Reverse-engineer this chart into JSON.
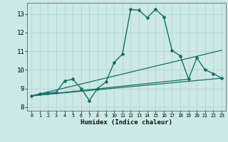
{
  "xlabel": "Humidex (Indice chaleur)",
  "xlim": [
    -0.5,
    23.5
  ],
  "ylim": [
    7.8,
    13.6
  ],
  "xticks": [
    0,
    1,
    2,
    3,
    4,
    5,
    6,
    7,
    8,
    9,
    10,
    11,
    12,
    13,
    14,
    15,
    16,
    17,
    18,
    19,
    20,
    21,
    22,
    23
  ],
  "yticks": [
    8,
    9,
    10,
    11,
    12,
    13
  ],
  "background_color": "#cce9e5",
  "grid_color": "#aad4cf",
  "line_color": "#1a6e64",
  "main_line": {
    "x": [
      0,
      1,
      2,
      3,
      4,
      5,
      6,
      7,
      8,
      9,
      10,
      11,
      12,
      13,
      14,
      15,
      16,
      17,
      18,
      19,
      20,
      21,
      22,
      23
    ],
    "y": [
      8.6,
      8.7,
      8.75,
      8.8,
      9.4,
      9.5,
      9.0,
      8.35,
      9.0,
      9.35,
      10.4,
      10.85,
      13.25,
      13.2,
      12.8,
      13.25,
      12.85,
      11.05,
      10.75,
      9.5,
      10.65,
      10.0,
      9.8,
      9.55
    ]
  },
  "trend_lines": [
    {
      "x": [
        0,
        23
      ],
      "y": [
        8.6,
        9.55
      ]
    },
    {
      "x": [
        0,
        19
      ],
      "y": [
        8.6,
        9.5
      ]
    },
    {
      "x": [
        0,
        23
      ],
      "y": [
        8.6,
        11.05
      ]
    }
  ],
  "lw_main": 1.0,
  "lw_trend": 0.9,
  "marker": "D",
  "ms": 2.0
}
